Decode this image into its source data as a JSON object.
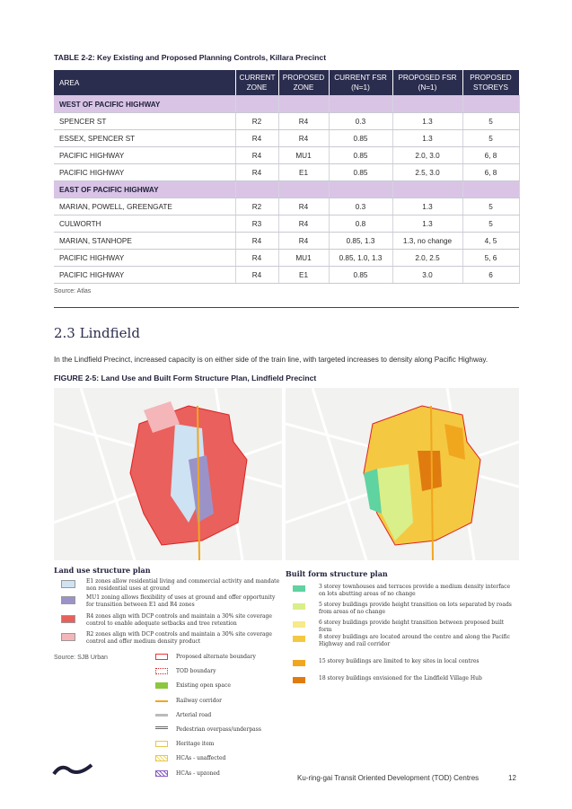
{
  "table": {
    "title": "TABLE 2-2: Key Existing and Proposed Planning Controls, Killara Precinct",
    "header": [
      "AREA",
      "CURRENT ZONE",
      "PROPOSED ZONE",
      "CURRENT FSR (N=1)",
      "PROPOSED FSR (N=1)",
      "PROPOSED STOREYS"
    ],
    "rows": [
      [
        "WEST OF PACIFIC HIGHWAY"
      ],
      [
        "SPENCER ST",
        "R2",
        "R4",
        "0.3",
        "1.3",
        "5"
      ],
      [
        "ESSEX, SPENCER ST",
        "R4",
        "R4",
        "0.85",
        "1.3",
        "5"
      ],
      [
        "PACIFIC HIGHWAY",
        "R4",
        "MU1",
        "0.85",
        "2.0, 3.0",
        "6, 8"
      ],
      [
        "PACIFIC HIGHWAY",
        "R4",
        "E1",
        "0.85",
        "2.5, 3.0",
        "6, 8"
      ],
      [
        "EAST OF PACIFIC HIGHWAY"
      ],
      [
        "MARIAN, POWELL, GREENGATE",
        "R2",
        "R4",
        "0.3",
        "1.3",
        "5"
      ],
      [
        "CULWORTH",
        "R3",
        "R4",
        "0.8",
        "1.3",
        "5"
      ],
      [
        "MARIAN, STANHOPE",
        "R4",
        "R4",
        "0.85, 1.3",
        "1.3, no change",
        "4, 5"
      ],
      [
        "PACIFIC HIGHWAY",
        "R4",
        "MU1",
        "0.85, 1.0, 1.3",
        "2.0, 2.5",
        "5, 6"
      ],
      [
        "PACIFIC HIGHWAY",
        "R4",
        "E1",
        "0.85",
        "3.0",
        "6"
      ]
    ],
    "source": "Source: Atlas"
  },
  "section": {
    "heading": "2.3 Lindfield",
    "paragraph": "In the Lindfield Precinct, increased capacity is on either side of the train line, with targeted increases to density along Pacific Highway.",
    "figure_title": "FIGURE 2-5: Land Use and Built Form Structure Plan, Lindfield Precinct"
  },
  "figure": {
    "land_use_title": "Land use structure plan",
    "land_use_items": [
      "E1 zones allow residential living and commercial activity and mandate non residential uses at ground",
      "MU1 zoning allows flexibility of uses at ground and offer opportunity for transition between E1 and R4 zones",
      "R4 zones align with DCP controls and maintain a 30% site coverage control to enable adequate setbacks and tree retention",
      "R2 zones align with DCP controls and maintain a 30% site coverage control and offer medium density product"
    ],
    "source": "Source: SJB Urban",
    "map_legend": [
      "Proposed alternate boundary",
      "TOD boundary",
      "Existing open space",
      "Railway corridor",
      "Arterial road",
      "Pedestrian overpass/underpass",
      "Heritage item",
      "HCAs - unaffected",
      "HCAs - upzoned"
    ],
    "built_form_title": "Built form structure plan",
    "built_form_items": [
      "3 storey townhouses and terraces provide a medium density interface on lots abutting areas of no change",
      "5 storey buildings provide height transition on lots separated by roads from areas of no change",
      "6 storey buildings provide height transition between proposed built form",
      "8 storey buildings are located around the centre and along the Pacific Highway and rail corridor",
      "15 storey buildings are limited to key sites in local centres",
      "18 storey buildings envisioned for the Lindfield Village Hub"
    ]
  },
  "footer": {
    "title": "Ku-ring-gai Transit Oriented Development (TOD) Centres",
    "page": "12"
  }
}
